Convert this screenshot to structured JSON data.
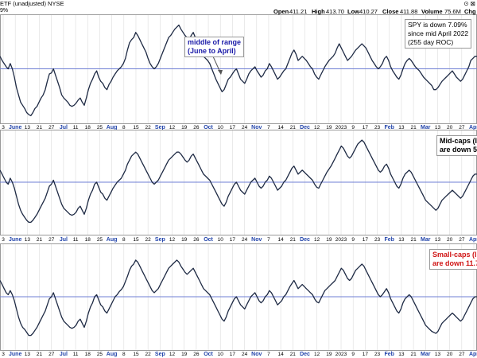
{
  "header": {
    "security": "ETF (unadjusted) NYSE",
    "corner_icons": "⊙ ⊠",
    "open_label": "Open",
    "open": "411.21",
    "high_label": "High",
    "high": "413.70",
    "low_label": "Low",
    "low": "410.27",
    "close_label": "Close",
    "close": "411.88",
    "volume_label": "Volume",
    "volume": "75.6M",
    "chg_label": "Chg",
    "panel1_label": "9%"
  },
  "annotations": {
    "middle": "middle of range\n(June to April)",
    "spy": "SPY is down 7.09%\nsince mid April 2022\n(255 day ROC)",
    "mid": "Mid-caps (I\nare down 5",
    "small": "Small-caps (I\nare down 11.7"
  },
  "colors": {
    "line": "#1e2a44",
    "midline": "#6f7fd4",
    "grid": "#dcdcdc",
    "mid_annotation": "#1a1aa8",
    "small_annotation": "#d01515",
    "text": "#000000",
    "month_label": "#2244aa"
  },
  "chart_data": [
    {
      "type": "line",
      "panel": "top",
      "values": [
        62,
        58,
        55,
        52,
        50,
        55,
        50,
        42,
        32,
        25,
        18,
        15,
        12,
        8,
        6,
        5,
        8,
        12,
        14,
        18,
        22,
        25,
        30,
        38,
        45,
        46,
        50,
        44,
        38,
        32,
        25,
        22,
        20,
        18,
        15,
        14,
        15,
        17,
        20,
        22,
        18,
        15,
        22,
        30,
        36,
        40,
        45,
        48,
        42,
        38,
        36,
        32,
        30,
        35,
        38,
        42,
        45,
        48,
        50,
        52,
        55,
        60,
        68,
        75,
        78,
        80,
        85,
        82,
        78,
        74,
        70,
        66,
        60,
        55,
        52,
        50,
        52,
        55,
        60,
        65,
        70,
        75,
        80,
        82,
        85,
        88,
        90,
        92,
        88,
        85,
        82,
        80,
        78,
        82,
        85,
        80,
        75,
        70,
        66,
        62,
        60,
        58,
        55,
        50,
        45,
        40,
        36,
        32,
        28,
        30,
        35,
        40,
        42,
        45,
        48,
        50,
        45,
        40,
        38,
        36,
        40,
        45,
        48,
        50,
        52,
        48,
        45,
        42,
        44,
        48,
        50,
        55,
        52,
        48,
        44,
        40,
        42,
        45,
        48,
        50,
        55,
        60,
        65,
        68,
        64,
        58,
        60,
        62,
        60,
        58,
        55,
        52,
        50,
        45,
        42,
        40,
        44,
        48,
        52,
        55,
        58,
        60,
        62,
        65,
        70,
        74,
        70,
        66,
        62,
        58,
        60,
        62,
        65,
        68,
        70,
        72,
        74,
        72,
        70,
        66,
        62,
        58,
        55,
        52,
        50,
        52,
        55,
        60,
        62,
        58,
        52,
        48,
        45,
        42,
        40,
        44,
        50,
        55,
        58,
        60,
        58,
        55,
        52,
        50,
        48,
        45,
        42,
        40,
        38,
        36,
        34,
        30,
        30,
        32,
        35,
        38,
        40,
        42,
        44,
        46,
        48,
        45,
        42,
        40,
        38,
        40,
        44,
        48,
        52,
        58,
        60,
        62,
        62
      ],
      "midline": 50
    },
    {
      "type": "line",
      "panel": "middle",
      "values": [
        62,
        58,
        54,
        50,
        48,
        54,
        50,
        44,
        36,
        28,
        22,
        18,
        15,
        12,
        10,
        10,
        12,
        15,
        18,
        22,
        26,
        30,
        34,
        40,
        46,
        48,
        52,
        46,
        40,
        34,
        28,
        24,
        22,
        20,
        18,
        17,
        18,
        20,
        24,
        26,
        22,
        18,
        24,
        32,
        38,
        42,
        48,
        50,
        45,
        40,
        38,
        34,
        32,
        36,
        40,
        44,
        47,
        50,
        52,
        54,
        58,
        62,
        68,
        72,
        76,
        78,
        80,
        78,
        74,
        70,
        66,
        62,
        58,
        54,
        50,
        48,
        50,
        52,
        56,
        60,
        64,
        68,
        72,
        74,
        76,
        78,
        80,
        80,
        78,
        75,
        72,
        70,
        72,
        76,
        78,
        74,
        70,
        66,
        62,
        58,
        56,
        54,
        52,
        48,
        44,
        40,
        36,
        32,
        28,
        26,
        30,
        36,
        40,
        44,
        48,
        50,
        46,
        42,
        40,
        38,
        42,
        46,
        50,
        52,
        54,
        50,
        46,
        44,
        46,
        50,
        52,
        56,
        54,
        50,
        46,
        42,
        44,
        46,
        50,
        52,
        56,
        60,
        64,
        66,
        62,
        58,
        60,
        62,
        60,
        58,
        56,
        54,
        52,
        48,
        45,
        44,
        48,
        52,
        56,
        60,
        63,
        66,
        70,
        74,
        78,
        82,
        86,
        84,
        80,
        76,
        74,
        76,
        80,
        84,
        88,
        90,
        92,
        90,
        86,
        82,
        78,
        74,
        70,
        66,
        62,
        60,
        62,
        66,
        68,
        64,
        58,
        54,
        50,
        46,
        44,
        48,
        54,
        58,
        60,
        62,
        60,
        56,
        52,
        48,
        44,
        40,
        36,
        32,
        30,
        28,
        26,
        24,
        22,
        24,
        28,
        32,
        34,
        36,
        38,
        40,
        42,
        40,
        38,
        36,
        34,
        36,
        40,
        44,
        48,
        52,
        56,
        58,
        58
      ],
      "midline": 50
    },
    {
      "type": "line",
      "panel": "bottom",
      "values": [
        66,
        62,
        58,
        54,
        52,
        56,
        52,
        46,
        38,
        30,
        24,
        20,
        18,
        15,
        12,
        12,
        14,
        17,
        20,
        24,
        28,
        32,
        36,
        42,
        48,
        50,
        54,
        48,
        42,
        36,
        30,
        26,
        24,
        22,
        20,
        19,
        20,
        22,
        26,
        28,
        24,
        20,
        26,
        34,
        40,
        44,
        50,
        52,
        47,
        42,
        40,
        36,
        34,
        38,
        42,
        46,
        50,
        52,
        55,
        57,
        60,
        65,
        70,
        76,
        80,
        82,
        86,
        84,
        80,
        76,
        72,
        68,
        64,
        60,
        56,
        54,
        56,
        58,
        62,
        66,
        70,
        74,
        78,
        80,
        82,
        84,
        86,
        84,
        80,
        77,
        74,
        72,
        74,
        76,
        78,
        74,
        70,
        66,
        62,
        58,
        56,
        54,
        52,
        48,
        44,
        40,
        36,
        32,
        28,
        26,
        30,
        36,
        40,
        44,
        48,
        50,
        46,
        42,
        40,
        38,
        42,
        46,
        50,
        52,
        54,
        50,
        46,
        44,
        46,
        50,
        52,
        56,
        54,
        50,
        46,
        42,
        44,
        46,
        50,
        52,
        56,
        60,
        63,
        66,
        62,
        58,
        60,
        62,
        60,
        58,
        56,
        54,
        52,
        48,
        45,
        44,
        48,
        52,
        56,
        58,
        60,
        62,
        64,
        66,
        70,
        74,
        78,
        76,
        72,
        68,
        66,
        68,
        72,
        76,
        78,
        80,
        82,
        80,
        76,
        72,
        68,
        64,
        60,
        56,
        52,
        50,
        52,
        55,
        58,
        54,
        48,
        44,
        40,
        36,
        34,
        38,
        44,
        48,
        50,
        52,
        50,
        46,
        42,
        38,
        34,
        30,
        26,
        22,
        20,
        18,
        16,
        15,
        14,
        16,
        20,
        24,
        26,
        28,
        30,
        32,
        34,
        32,
        30,
        28,
        26,
        28,
        32,
        36,
        40,
        44,
        48,
        50,
        50
      ],
      "midline": 50
    }
  ],
  "axis_labels": [
    "3",
    "June",
    "13",
    "21",
    "27",
    "Jul",
    "11",
    "18",
    "25",
    "Aug",
    "8",
    "15",
    "22",
    "Sep",
    "12",
    "19",
    "26",
    "Oct",
    "10",
    "17",
    "24",
    "Nov",
    "7",
    "14",
    "21",
    "Dec",
    "12",
    "19",
    "2023",
    "9",
    "17",
    "23",
    "Feb",
    "13",
    "21",
    "Mar",
    "13",
    "20",
    "27",
    "Apr"
  ]
}
